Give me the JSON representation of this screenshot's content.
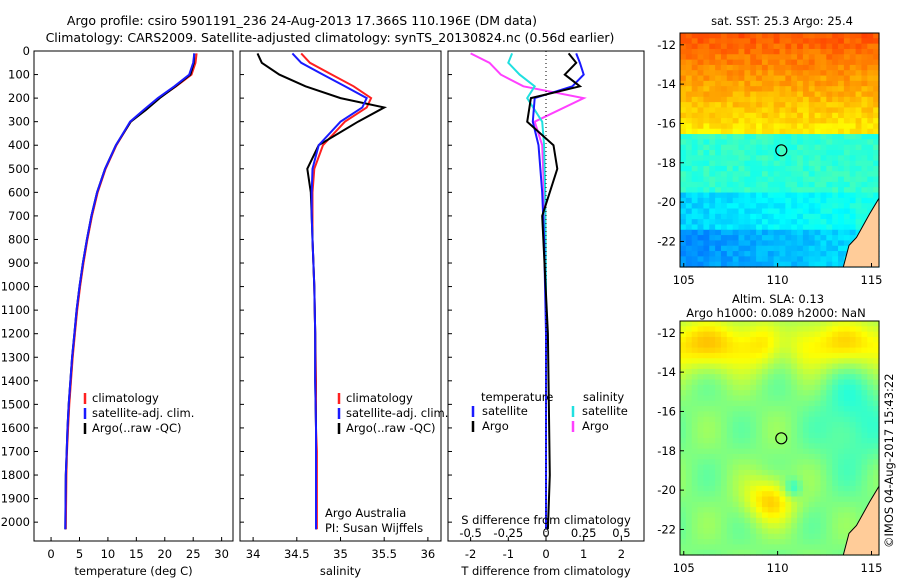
{
  "header": {
    "line1": "Argo profile: csiro 5901191_236 24-Aug-2013 17.366S 110.196E (DM data)",
    "line2": "Climatology: CARS2009. Satellite-adjusted climatology: synTS_20130824.nc (0.56d earlier)"
  },
  "depth_ticks": [
    "0",
    "100",
    "200",
    "300",
    "400",
    "500",
    "600",
    "700",
    "800",
    "900",
    "1000",
    "1100",
    "1200",
    "1300",
    "1400",
    "1500",
    "1600",
    "1700",
    "1800",
    "1900",
    "2000"
  ],
  "colors": {
    "climatology": "#ff2020",
    "satellite": "#1a1aff",
    "argo": "#000000",
    "argo_salinity": "#ff40ff",
    "satellite_salinity": "#20e0e0",
    "land": "#ffcc99"
  },
  "chart_data": [
    {
      "type": "line",
      "xlabel": "temperature (deg C)",
      "xticks": [
        "0",
        "5",
        "10",
        "15",
        "20",
        "25",
        "30"
      ],
      "xlim": [
        -3,
        32
      ],
      "ylim": [
        2080,
        0
      ],
      "legend": [
        "climatology",
        "satellite-adj. clim.",
        "Argo(..raw -QC)"
      ],
      "series": [
        {
          "name": "climatology",
          "color": "#ff2020",
          "x": [
            25.6,
            25.4,
            24.7,
            22,
            19,
            16.5,
            14,
            11.5,
            9.6,
            8.2,
            7.2,
            6.4,
            5.7,
            5.1,
            4.6,
            4.2,
            3.8,
            3.5,
            3.2,
            3.0,
            2.8,
            2.7,
            2.6
          ],
          "y": [
            10,
            50,
            100,
            150,
            200,
            250,
            300,
            400,
            500,
            600,
            700,
            800,
            900,
            1000,
            1100,
            1200,
            1300,
            1400,
            1500,
            1600,
            1700,
            1800,
            2030
          ]
        },
        {
          "name": "satellite-adj. clim.",
          "color": "#1a1aff",
          "x": [
            25.2,
            25.0,
            24.3,
            21.7,
            18.8,
            16.3,
            13.9,
            11.4,
            9.5,
            8.1,
            7.1,
            6.3,
            5.6,
            5.0,
            4.5,
            4.1,
            3.7,
            3.4,
            3.1,
            2.9,
            2.75,
            2.6,
            2.5
          ],
          "y": [
            10,
            50,
            100,
            150,
            200,
            250,
            300,
            400,
            500,
            600,
            700,
            800,
            900,
            1000,
            1100,
            1200,
            1300,
            1400,
            1500,
            1600,
            1700,
            1800,
            2030
          ]
        },
        {
          "name": "Argo(..raw -QC)",
          "color": "#000000",
          "x": [
            25.2,
            25.1,
            24.5,
            21.9,
            19.1,
            16.7,
            14.0,
            11.4,
            9.5,
            8.1,
            7.1,
            6.3,
            5.6,
            5.0,
            4.5,
            4.1,
            3.7,
            3.4,
            3.1,
            2.9,
            2.75,
            2.6,
            2.5
          ],
          "y": [
            10,
            50,
            100,
            150,
            200,
            250,
            300,
            400,
            500,
            600,
            700,
            800,
            900,
            1000,
            1100,
            1200,
            1300,
            1400,
            1500,
            1600,
            1700,
            1800,
            2030
          ]
        }
      ]
    },
    {
      "type": "line",
      "xlabel": "salinity",
      "xticks": [
        "34",
        "34.5",
        "35",
        "35.5",
        "36"
      ],
      "xlim": [
        33.85,
        36.15
      ],
      "ylim": [
        2080,
        0
      ],
      "legend": [
        "climatology",
        "satellite-adj. clim.",
        "Argo(..raw -QC)"
      ],
      "annotation": [
        "Argo Australia",
        "PI: Susan Wijffels"
      ],
      "series": [
        {
          "name": "climatology",
          "color": "#ff2020",
          "x": [
            34.55,
            34.65,
            34.9,
            35.15,
            35.35,
            35.3,
            35.05,
            34.8,
            34.7,
            34.68,
            34.68,
            34.68,
            34.69,
            34.7,
            34.71,
            34.72,
            34.72,
            34.73,
            34.73,
            34.73,
            34.73
          ],
          "y": [
            10,
            50,
            100,
            150,
            200,
            240,
            300,
            400,
            500,
            600,
            700,
            800,
            900,
            1000,
            1200,
            1400,
            1600,
            1700,
            1800,
            1900,
            2030
          ]
        },
        {
          "name": "satellite-adj. clim.",
          "color": "#1a1aff",
          "x": [
            34.45,
            34.55,
            34.8,
            35.05,
            35.3,
            35.25,
            35.0,
            34.75,
            34.68,
            34.67,
            34.67,
            34.68,
            34.69,
            34.7,
            34.71,
            34.71,
            34.72,
            34.72,
            34.72,
            34.72,
            34.72
          ],
          "y": [
            10,
            50,
            100,
            150,
            200,
            240,
            300,
            400,
            500,
            600,
            700,
            800,
            900,
            1000,
            1200,
            1400,
            1600,
            1700,
            1800,
            1900,
            2030
          ]
        },
        {
          "name": "Argo(..raw -QC)",
          "color": "#000000",
          "x": [
            34.05,
            34.1,
            34.3,
            34.6,
            35.0,
            35.5,
            35.2,
            34.75,
            34.62,
            34.66,
            34.67,
            34.68,
            34.69,
            34.7,
            34.71,
            34.71,
            34.72,
            34.72,
            34.72,
            34.72,
            34.72
          ],
          "y": [
            10,
            50,
            100,
            150,
            200,
            240,
            300,
            400,
            500,
            600,
            700,
            800,
            900,
            1000,
            1200,
            1400,
            1600,
            1700,
            1800,
            1900,
            2030
          ]
        }
      ]
    },
    {
      "type": "line",
      "xlabel": "T difference from climatology",
      "xticks": [
        "-2",
        "-1",
        "0",
        "1",
        "2"
      ],
      "xlim": [
        -2.6,
        2.6
      ],
      "ylim": [
        2080,
        0
      ],
      "secondary_axis": {
        "label": "S difference from climatology",
        "ticks": [
          "-0.5",
          "-0.25",
          "0",
          "0.25",
          "0.5"
        ]
      },
      "legend": {
        "temperature": [
          "satellite",
          "Argo"
        ],
        "salinity": [
          "satellite",
          "Argo"
        ]
      },
      "series": [
        {
          "name": "temperature satellite",
          "color": "#1a1aff",
          "x": [
            0.8,
            0.9,
            1.0,
            0.7,
            -0.3,
            -0.35,
            -0.2,
            -0.1,
            -0.05,
            0,
            0
          ],
          "y": [
            10,
            50,
            100,
            150,
            200,
            300,
            400,
            600,
            800,
            1200,
            2030
          ]
        },
        {
          "name": "temperature Argo",
          "color": "#000000",
          "x": [
            0.6,
            0.8,
            0.5,
            0.9,
            -0.4,
            -0.5,
            0.2,
            0.3,
            -0.1,
            0.05,
            0.1,
            0.05
          ],
          "y": [
            10,
            50,
            100,
            150,
            200,
            300,
            400,
            500,
            700,
            1200,
            1800,
            2030
          ]
        },
        {
          "name": "salinity satellite",
          "color": "#20e0e0",
          "x": [
            -0.9,
            -1.0,
            -0.7,
            -0.3,
            -0.5,
            -0.1,
            -0.05,
            -0.02,
            0,
            0
          ],
          "y": [
            10,
            50,
            100,
            150,
            200,
            300,
            400,
            600,
            1000,
            2030
          ]
        },
        {
          "name": "salinity Argo",
          "color": "#ff40ff",
          "x": [
            -2.0,
            -1.5,
            -1.2,
            -0.6,
            1.0,
            -0.3,
            -0.1,
            -0.05,
            0,
            0
          ],
          "y": [
            10,
            50,
            100,
            150,
            200,
            300,
            400,
            600,
            1000,
            2030
          ]
        }
      ]
    },
    {
      "type": "heatmap",
      "title": "sat. SST: 25.3  Argo: 25.4",
      "xticks": [
        "105",
        "110",
        "115"
      ],
      "yticks": [
        "-12",
        "-14",
        "-16",
        "-18",
        "-20",
        "-22"
      ],
      "xlim": [
        104.8,
        115.4
      ],
      "ylim": [
        -23.3,
        -11.4
      ],
      "marker": {
        "lon": 110.196,
        "lat": -17.366
      }
    },
    {
      "type": "heatmap",
      "title": [
        "Altim. SLA: 0.13",
        "Argo h1000: 0.089 h2000: NaN"
      ],
      "xticks": [
        "105",
        "110",
        "115"
      ],
      "yticks": [
        "-12",
        "-14",
        "-16",
        "-18",
        "-20",
        "-22"
      ],
      "xlim": [
        104.8,
        115.4
      ],
      "ylim": [
        -23.3,
        -11.4
      ],
      "marker": {
        "lon": 110.196,
        "lat": -17.366
      }
    }
  ],
  "credit": "©IMOS 04-Aug-2017 15:43:22"
}
